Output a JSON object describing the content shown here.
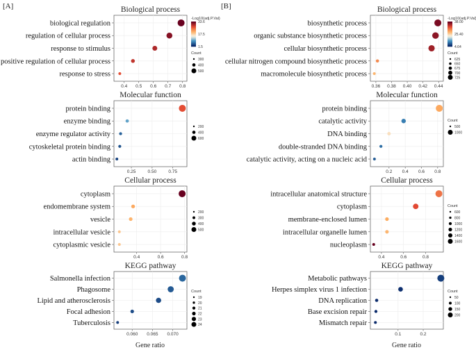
{
  "figure": {
    "label_a": "[A]",
    "label_b": "[B]",
    "x_axis_label": "Gene ratio"
  },
  "colors": {
    "high": "#67001f",
    "mid_high": "#e34a33",
    "mid": "#fdae61",
    "low_mid": "#f7f4e6",
    "low": "#4393c3",
    "lowest": "#0a2a6b"
  },
  "chart_data": [
    {
      "panel": "A",
      "type": "scatter",
      "title": "Biological process",
      "categories": [
        "biological regulation",
        "regulation of cellular process",
        "response to stimulus",
        "positive regulation of cellular process",
        "response to stress"
      ],
      "x": [
        0.79,
        0.71,
        0.61,
        0.46,
        0.37
      ],
      "color_value": [
        33.5,
        32,
        30,
        29,
        27
      ],
      "size_value": [
        520,
        470,
        420,
        370,
        320
      ],
      "xlim": [
        0.33,
        0.83
      ],
      "xticks": [
        0.4,
        0.5,
        0.6,
        0.7,
        0.8
      ],
      "xtick_labels": [
        "0.4",
        "0.5",
        "0.6",
        "0.7",
        "0.8"
      ],
      "color_legend": {
        "title": "-Log10(adj.P.Val)",
        "max": 33.6,
        "min": 1.5,
        "labels": [
          "33.6",
          "17.5",
          "1.5"
        ]
      },
      "size_legend": {
        "title": "Count",
        "labels": [
          "300",
          "400",
          "500"
        ],
        "values": [
          300,
          400,
          500
        ]
      }
    },
    {
      "panel": "A",
      "type": "scatter",
      "title": "Molecular function",
      "categories": [
        "protein binding",
        "enzyme binding",
        "enzyme regulator activity",
        "cytoskeletal protein binding",
        "actin binding"
      ],
      "x": [
        0.865,
        0.2,
        0.12,
        0.11,
        0.075
      ],
      "color_value": [
        27,
        9,
        5,
        4,
        3
      ],
      "size_value": [
        600,
        130,
        90,
        80,
        60
      ],
      "xlim": [
        0.04,
        0.92
      ],
      "xticks": [
        0.25,
        0.5,
        0.75
      ],
      "xtick_labels": [
        "0.25",
        "0.50",
        "0.75"
      ],
      "color_legend": {
        "title": "",
        "max": 33.6,
        "min": 1.5,
        "labels": []
      },
      "size_legend": {
        "title": "",
        "labels": [
          "200",
          "400",
          "600"
        ],
        "values": [
          200,
          400,
          600
        ]
      }
    },
    {
      "panel": "A",
      "type": "scatter",
      "title": "Cellular process",
      "categories": [
        "cytoplasm",
        "endomembrane system",
        "vesicle",
        "intracellular vesicle",
        "cytoplasmic vesicle"
      ],
      "x": [
        0.78,
        0.37,
        0.35,
        0.255,
        0.255
      ],
      "color_value": [
        40,
        25,
        24,
        22,
        22
      ],
      "size_value": [
        560,
        280,
        270,
        200,
        200
      ],
      "xlim": [
        0.21,
        0.82
      ],
      "xticks": [
        0.4,
        0.6,
        0.8
      ],
      "xtick_labels": [
        "0.4",
        "0.6",
        "0.8"
      ],
      "color_legend": {
        "title": "",
        "max": 40,
        "min": 1.5,
        "labels": []
      },
      "size_legend": {
        "title": "",
        "labels": [
          "200",
          "300",
          "400",
          "500"
        ],
        "values": [
          200,
          300,
          400,
          500
        ]
      }
    },
    {
      "panel": "A",
      "type": "scatter",
      "title": "KEGG pathway",
      "categories": [
        "Salmonella infection",
        "Phagosome",
        "Lipid and atherosclerosis",
        "Focal adhesion",
        "Tuberculosis"
      ],
      "x": [
        0.0724,
        0.0695,
        0.0665,
        0.06,
        0.0564
      ],
      "color_value": [
        6,
        5,
        4,
        4,
        3
      ],
      "size_value": [
        24,
        23,
        22,
        20,
        19
      ],
      "xlim": [
        0.0555,
        0.0735
      ],
      "xticks": [
        0.06,
        0.065,
        0.07
      ],
      "xtick_labels": [
        "0.060",
        "0.065",
        "0.070"
      ],
      "color_legend": {
        "title": "",
        "max": 40,
        "min": 1.5,
        "labels": []
      },
      "size_legend": {
        "title": "Count",
        "labels": [
          "19",
          "20",
          "21",
          "22",
          "23",
          "24"
        ],
        "values": [
          19,
          20,
          21,
          22,
          23,
          24
        ]
      }
    },
    {
      "panel": "B",
      "type": "scatter",
      "title": "Biological process",
      "categories": [
        "biosynthetic process",
        "organic substance biosynthetic process",
        "cellular biosynthetic process",
        "cellular nitrogen compound biosynthetic process",
        "macromolecule biosynthetic process"
      ],
      "x": [
        0.439,
        0.436,
        0.431,
        0.362,
        0.358
      ],
      "color_value": [
        37,
        36,
        35,
        27,
        24
      ],
      "size_value": [
        720,
        700,
        690,
        540,
        520
      ],
      "xlim": [
        0.353,
        0.446
      ],
      "xticks": [
        0.36,
        0.38,
        0.4,
        0.42,
        0.44
      ],
      "xtick_labels": [
        "0.36",
        "0.38",
        "0.40",
        "0.42",
        "0.44"
      ],
      "color_legend": {
        "title": "-Log10(adj.P.Val)",
        "max": 38,
        "min": 4.64,
        "labels": [
          "38.00",
          "25.40",
          "4.64"
        ]
      },
      "size_legend": {
        "title": "Count",
        "labels": [
          "625",
          "650",
          "675",
          "700",
          "725"
        ],
        "values": [
          625,
          650,
          675,
          700,
          725
        ]
      }
    },
    {
      "panel": "B",
      "type": "scatter",
      "title": "Molecular function",
      "categories": [
        "protein binding",
        "catalytic activity",
        "DNA binding",
        "double-stranded DNA binding",
        "catalytic activity, acting on a nucleic acid"
      ],
      "x": [
        0.82,
        0.38,
        0.2,
        0.1,
        0.02
      ],
      "color_value": [
        25,
        10,
        20,
        9,
        8
      ],
      "size_value": [
        1150,
        500,
        230,
        110,
        60
      ],
      "xlim": [
        -0.03,
        0.87
      ],
      "xticks": [
        0.2,
        0.4,
        0.6,
        0.8
      ],
      "xtick_labels": [
        "0.2",
        "0.4",
        "0.6",
        "0.8"
      ],
      "color_legend": {
        "title": "",
        "max": 38,
        "min": 4.64,
        "labels": []
      },
      "size_legend": {
        "title": "Count",
        "labels": [
          "500",
          "1000"
        ],
        "values": [
          500,
          1000
        ]
      }
    },
    {
      "panel": "B",
      "type": "scatter",
      "title": "Cellular process",
      "categories": [
        "intracellular anatomical structure",
        "cytoplasm",
        "membrane-enclosed lumen",
        "intracellular organelle lumen",
        "nucleoplasm"
      ],
      "x": [
        0.92,
        0.71,
        0.45,
        0.45,
        0.33
      ],
      "color_value": [
        30,
        33,
        26,
        25,
        40
      ],
      "size_value": [
        1450,
        1100,
        650,
        640,
        450
      ],
      "xlim": [
        0.3,
        0.96
      ],
      "xticks": [
        0.4,
        0.6,
        0.8
      ],
      "xtick_labels": [
        "0.4",
        "0.6",
        "0.8"
      ],
      "color_legend": {
        "title": "",
        "max": 40,
        "min": 4.64,
        "labels": []
      },
      "size_legend": {
        "title": "Count",
        "labels": [
          "600",
          "800",
          "1000",
          "1200",
          "1400",
          "1600"
        ],
        "values": [
          600,
          800,
          1000,
          1200,
          1400,
          1600
        ]
      }
    },
    {
      "panel": "B",
      "type": "scatter",
      "title": "KEGG pathway",
      "categories": [
        "Metabolic pathways",
        "Herpes simplex virus 1 infection",
        "DNA replication",
        "Base excision repair",
        "Mismatch repair"
      ],
      "x": [
        0.27,
        0.11,
        0.015,
        0.012,
        0.01
      ],
      "color_value": [
        6,
        5,
        4,
        4,
        3
      ],
      "size_value": [
        220,
        110,
        40,
        30,
        20
      ],
      "xlim": [
        -0.01,
        0.28
      ],
      "xticks": [
        0.1,
        0.2
      ],
      "xtick_labels": [
        "0.1",
        "0.2"
      ],
      "color_legend": {
        "title": "",
        "max": 40,
        "min": 4.64,
        "labels": []
      },
      "size_legend": {
        "title": "Count",
        "labels": [
          "50",
          "100",
          "150",
          "200"
        ],
        "values": [
          50,
          100,
          150,
          200
        ]
      }
    }
  ]
}
